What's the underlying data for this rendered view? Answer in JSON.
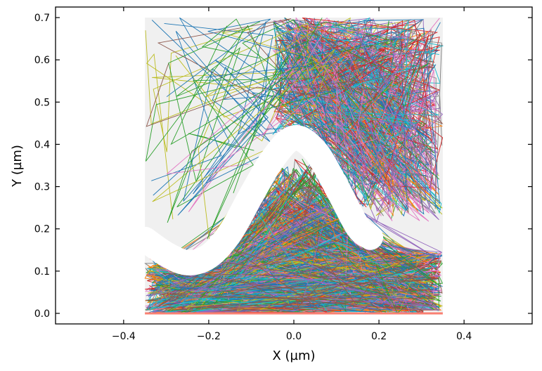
{
  "chart_data": {
    "type": "line",
    "title": "",
    "xlabel": "X (µm)",
    "ylabel": "Y (µm)",
    "xlim": [
      -0.56,
      0.56
    ],
    "ylim": [
      -0.025,
      0.725
    ],
    "xticks": [
      -0.4,
      -0.2,
      0.0,
      0.2,
      0.4
    ],
    "xtick_labels": [
      "−0.4",
      "−0.2",
      "0.0",
      "0.2",
      "0.4"
    ],
    "yticks": [
      0.0,
      0.1,
      0.2,
      0.3,
      0.4,
      0.5,
      0.6,
      0.7
    ],
    "ytick_labels": [
      "0.0",
      "0.1",
      "0.2",
      "0.3",
      "0.4",
      "0.5",
      "0.6",
      "0.7"
    ],
    "grid": false,
    "legend": "none",
    "tick_direction": "in",
    "domain": {
      "x": [
        -0.35,
        0.35
      ],
      "y": [
        0.0,
        0.7
      ],
      "color": "#f0f0f0"
    },
    "baseline": {
      "y": 0.0,
      "x": [
        -0.35,
        0.35
      ],
      "color": "#fa8072"
    },
    "obstacle": {
      "description_free": true,
      "x": [
        -0.35,
        -0.3,
        -0.25,
        -0.2,
        -0.15,
        -0.1,
        -0.05,
        0.0,
        0.05,
        0.1,
        0.15,
        0.18
      ],
      "y": [
        0.175,
        0.14,
        0.12,
        0.135,
        0.19,
        0.28,
        0.365,
        0.415,
        0.385,
        0.3,
        0.205,
        0.18
      ],
      "thickness": 0.06,
      "color": "#ffffff"
    },
    "series_colors": [
      "#1f77b4",
      "#ff7f0e",
      "#2ca02c",
      "#d62728",
      "#9467bd",
      "#8c564b",
      "#e377c2",
      "#7f7f7f",
      "#bcbd22",
      "#17becf"
    ]
  }
}
